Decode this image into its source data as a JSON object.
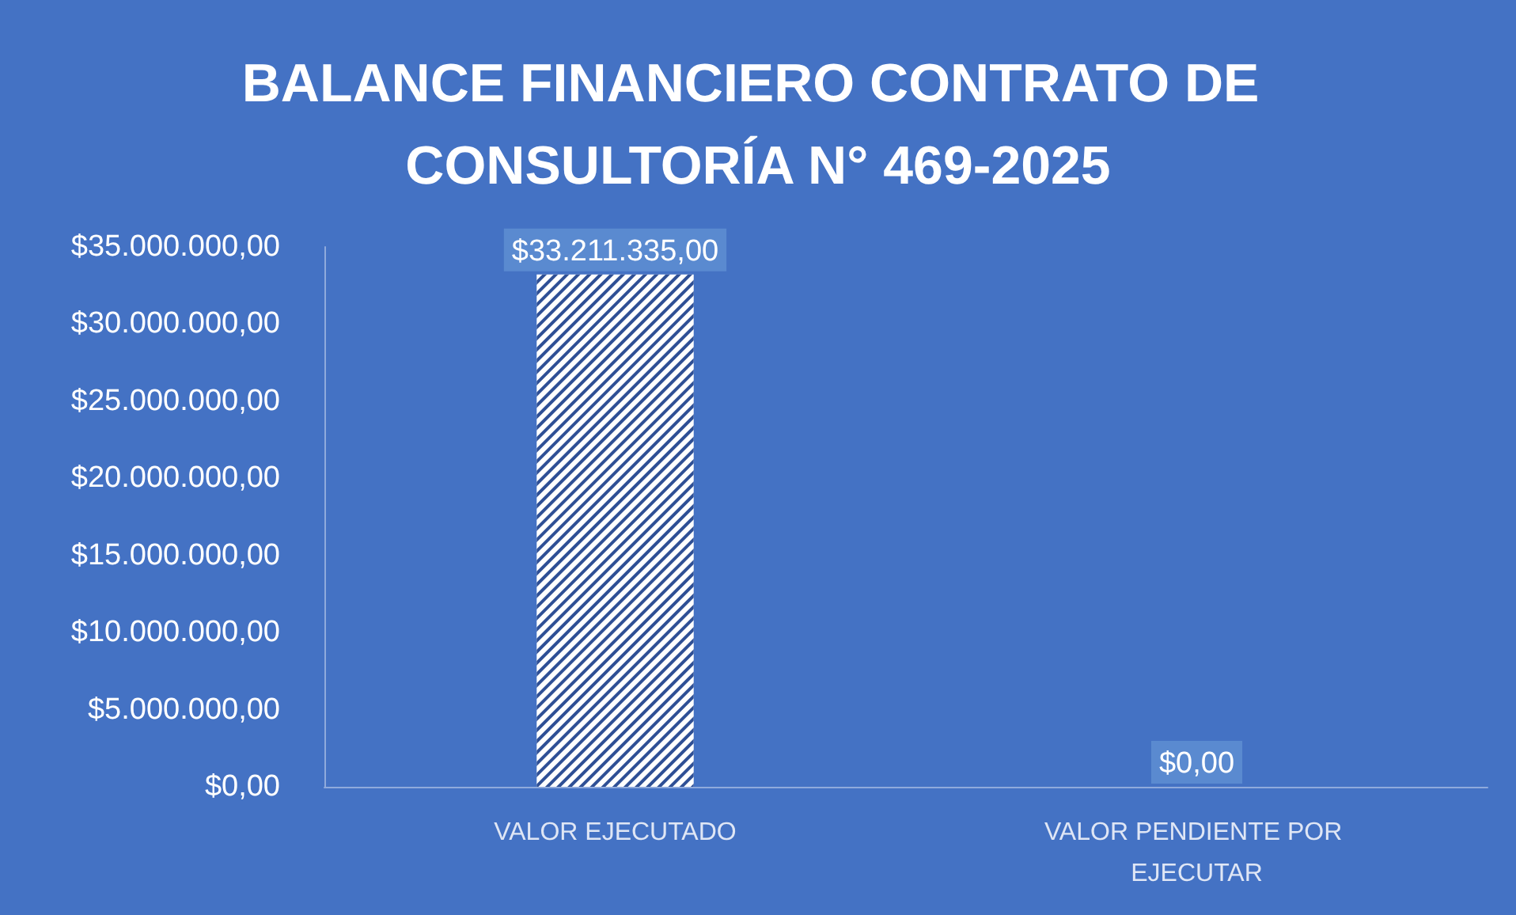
{
  "chart_data": {
    "type": "bar",
    "title": "BALANCE FINANCIERO CONTRATO DE CONSULTORÍA N° 469-2025",
    "categories": [
      "VALOR EJECUTADO",
      "VALOR PENDIENTE POR EJECUTAR"
    ],
    "values": [
      33211335,
      0
    ],
    "value_labels": [
      "$33.211.335,00",
      "$0,00"
    ],
    "color": "#ffffff",
    "ylim": [
      0,
      35000000
    ],
    "yticks": [
      {
        "value": 0,
        "label": "$0,00"
      },
      {
        "value": 5000000,
        "label": "$5.000.000,00"
      },
      {
        "value": 10000000,
        "label": "$10.000.000,00"
      },
      {
        "value": 15000000,
        "label": "$15.000.000,00"
      },
      {
        "value": 20000000,
        "label": "$20.000.000,00"
      },
      {
        "value": 25000000,
        "label": "$25.000.000,00"
      },
      {
        "value": 30000000,
        "label": "$30.000.000,00"
      },
      {
        "value": 35000000,
        "label": "$35.000.000,00"
      }
    ]
  }
}
